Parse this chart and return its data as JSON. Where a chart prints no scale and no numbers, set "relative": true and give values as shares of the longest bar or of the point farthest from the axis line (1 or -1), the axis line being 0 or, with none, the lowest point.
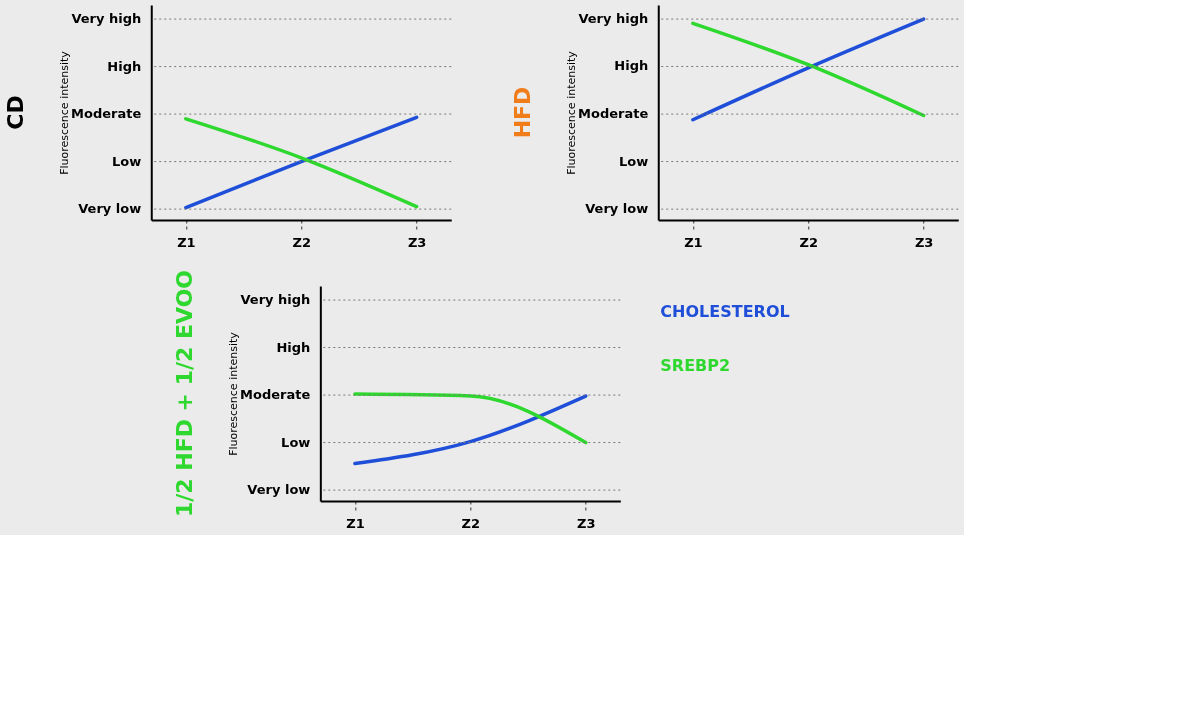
{
  "chart_data": [
    {
      "type": "line",
      "title": "CD",
      "ylabel": "Fluorescence intensity",
      "relative": true,
      "categories": [
        "Z1",
        "Z2",
        "Z3"
      ],
      "marker": "none",
      "line_style": "solid",
      "legend": false,
      "ref_lines": [
        {
          "axis": "y",
          "value": 0.106,
          "label": "Very low",
          "line_style": "dotted"
        },
        {
          "axis": "y",
          "value": 0.569,
          "label": "Low",
          "line_style": "dotted"
        },
        {
          "axis": "y",
          "value": 1.032,
          "label": "Moderate",
          "line_style": "dotted"
        },
        {
          "axis": "y",
          "value": 1.495,
          "label": "High",
          "line_style": "dotted"
        },
        {
          "axis": "y",
          "value": 1.958,
          "label": "Very high",
          "line_style": "dotted"
        }
      ],
      "series": [
        {
          "color": "#1f4fd8",
          "values": [
            0.12,
            0.57,
            1.0
          ]
        },
        {
          "color": "#2ed82e",
          "values": [
            0.986,
            0.606,
            0.13
          ]
        }
      ]
    },
    {
      "type": "line",
      "title": "HFD",
      "ylabel": "Fluorescence intensity",
      "relative": true,
      "categories": [
        "Z1",
        "Z2",
        "Z3"
      ],
      "marker": "none",
      "line_style": "solid",
      "legend": false,
      "ref_lines": [
        {
          "axis": "y",
          "value": 0.054,
          "label": "Very low",
          "line_style": "dotted"
        },
        {
          "axis": "y",
          "value": 0.291,
          "label": "Low",
          "line_style": "dotted"
        },
        {
          "axis": "y",
          "value": 0.527,
          "label": "Moderate",
          "line_style": "dotted"
        },
        {
          "axis": "y",
          "value": 0.764,
          "label": "High",
          "line_style": "dotted"
        },
        {
          "axis": "y",
          "value": 1.0,
          "label": "Very high",
          "line_style": "dotted"
        }
      ],
      "series": [
        {
          "color": "#1f4fd8",
          "values": [
            0.499,
            0.757,
            1.0
          ]
        },
        {
          "color": "#2ed82e",
          "values": [
            0.979,
            0.773,
            0.52
          ]
        }
      ]
    },
    {
      "type": "line",
      "title": "1/2 HFD + 1/2 EVOO",
      "ylabel": "Fluorescence intensity",
      "relative": true,
      "categories": [
        "Z1",
        "Z2",
        "Z3"
      ],
      "marker": "none",
      "line_style": "solid",
      "legend": "right",
      "ref_lines": [
        {
          "axis": "y",
          "value": 0.102,
          "label": "Very low",
          "line_style": "dotted"
        },
        {
          "axis": "y",
          "value": 0.547,
          "label": "Low",
          "line_style": "dotted"
        },
        {
          "axis": "y",
          "value": 0.991,
          "label": "Moderate",
          "line_style": "dotted"
        },
        {
          "axis": "y",
          "value": 1.436,
          "label": "High",
          "line_style": "dotted"
        },
        {
          "axis": "y",
          "value": 1.88,
          "label": "Very high",
          "line_style": "dotted"
        }
      ],
      "series": [
        {
          "name": "CHOLESTEROL",
          "color": "#1f4fd8",
          "values": [
            0.351,
            0.556,
            0.982
          ]
        },
        {
          "name": "SREBP2",
          "color": "#2ed82e",
          "values": [
            1.0,
            0.982,
            0.547
          ]
        }
      ]
    }
  ]
}
